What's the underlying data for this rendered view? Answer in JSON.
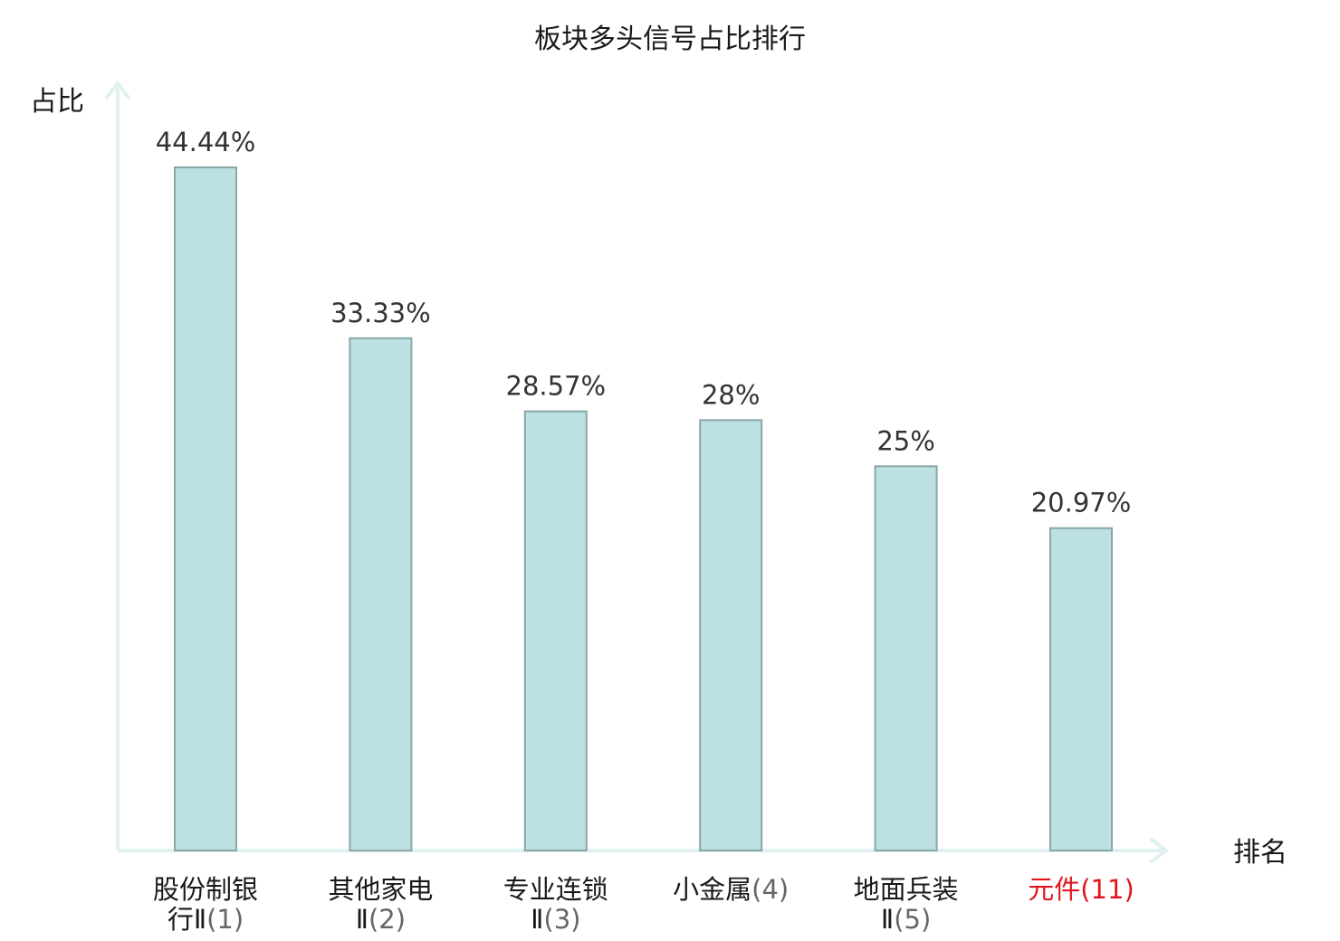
{
  "chart_data": {
    "type": "bar",
    "title": "板块多头信号占比排行",
    "ylabel": "占比",
    "xlabel": "排名",
    "ylim": [
      0,
      50
    ],
    "grid": false,
    "categories": [
      {
        "name": "股份制银行Ⅱ",
        "rank": "(1)",
        "lines": [
          "股份制银",
          "行Ⅱ",
          "(1)"
        ],
        "highlight": false
      },
      {
        "name": "其他家电Ⅱ",
        "rank": "(2)",
        "lines": [
          "其他家电",
          "Ⅱ",
          "(2)"
        ],
        "highlight": false
      },
      {
        "name": "专业连锁Ⅱ",
        "rank": "(3)",
        "lines": [
          "专业连锁",
          "Ⅱ",
          "(3)"
        ],
        "highlight": false
      },
      {
        "name": "小金属",
        "rank": "(4)",
        "lines": [
          "小金属",
          "",
          "(4)"
        ],
        "highlight": false
      },
      {
        "name": "地面兵装Ⅱ",
        "rank": "(5)",
        "lines": [
          "地面兵装",
          "Ⅱ",
          "(5)"
        ],
        "highlight": false
      },
      {
        "name": "元件",
        "rank": "(11)",
        "lines": [
          "元件",
          "",
          "(11)"
        ],
        "highlight": true
      }
    ],
    "values": [
      44.44,
      33.33,
      28.57,
      28,
      25,
      20.97
    ],
    "value_labels": [
      "44.44%",
      "33.33%",
      "28.57%",
      "28%",
      "25%",
      "20.97%"
    ],
    "colors": {
      "bar_fill": "#bde0e3",
      "bar_stroke": "#8aa7aa",
      "axis": "#e0f2ef",
      "highlight": "#e0161e"
    }
  }
}
